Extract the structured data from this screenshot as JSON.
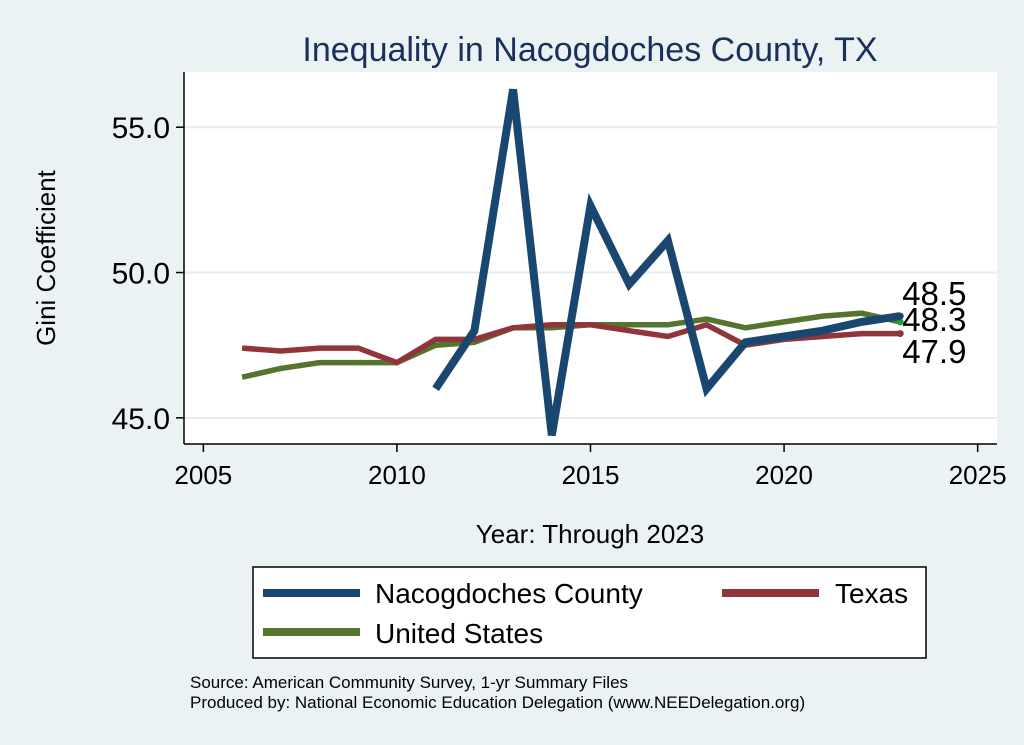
{
  "chart_data": {
    "type": "line",
    "title": "Inequality in Nacogdoches County, TX",
    "xlabel": "Year: Through 2023",
    "ylabel": "Gini Coefficient",
    "xlim": [
      2004.5,
      2025.5
    ],
    "ylim": [
      44.1,
      56.9
    ],
    "x_ticks": [
      2005,
      2010,
      2015,
      2020,
      2025
    ],
    "x_tick_labels": [
      "2005",
      "2010",
      "2015",
      "2020",
      "2025"
    ],
    "y_ticks": [
      45,
      50,
      55
    ],
    "y_tick_labels": [
      "45.0",
      "50.0",
      "55.0"
    ],
    "grid": true,
    "series": [
      {
        "name": "Nacogdoches County",
        "color": "#1a476f",
        "x": [
          2011,
          2012,
          2013,
          2014,
          2015,
          2016,
          2017,
          2018,
          2019,
          2020,
          2021,
          2022,
          2023
        ],
        "values": [
          46.0,
          48.0,
          56.3,
          44.4,
          52.3,
          49.6,
          51.1,
          46.0,
          47.6,
          47.8,
          48.0,
          48.3,
          48.5
        ]
      },
      {
        "name": "Texas",
        "color": "#90353b",
        "x": [
          2006,
          2007,
          2008,
          2009,
          2010,
          2011,
          2012,
          2013,
          2014,
          2015,
          2016,
          2017,
          2018,
          2019,
          2020,
          2021,
          2022,
          2023
        ],
        "values": [
          47.4,
          47.3,
          47.4,
          47.4,
          46.9,
          47.7,
          47.7,
          48.1,
          48.2,
          48.2,
          48.0,
          47.8,
          48.2,
          47.5,
          47.7,
          47.8,
          47.9,
          47.9
        ]
      },
      {
        "name": "United States",
        "color": "#55752f",
        "x": [
          2006,
          2007,
          2008,
          2009,
          2010,
          2011,
          2012,
          2013,
          2014,
          2015,
          2016,
          2017,
          2018,
          2019,
          2020,
          2021,
          2022,
          2023
        ],
        "values": [
          46.4,
          46.7,
          46.9,
          46.9,
          46.9,
          47.5,
          47.6,
          48.1,
          48.1,
          48.2,
          48.2,
          48.2,
          48.4,
          48.1,
          48.3,
          48.5,
          48.6,
          48.3
        ]
      }
    ],
    "end_labels": [
      "48.5",
      "48.3",
      "47.9"
    ],
    "legend_position": "bottom"
  },
  "legend": {
    "items": [
      {
        "label": "Nacogdoches County",
        "color": "#1a476f"
      },
      {
        "label": "Texas",
        "color": "#90353b"
      },
      {
        "label": "United States",
        "color": "#55752f"
      }
    ]
  },
  "footer": {
    "source": "Source: American Community Survey, 1-yr Summary Files",
    "produced": "Produced by: National Economic Education Delegation (www.NEEDelegation.org)"
  }
}
